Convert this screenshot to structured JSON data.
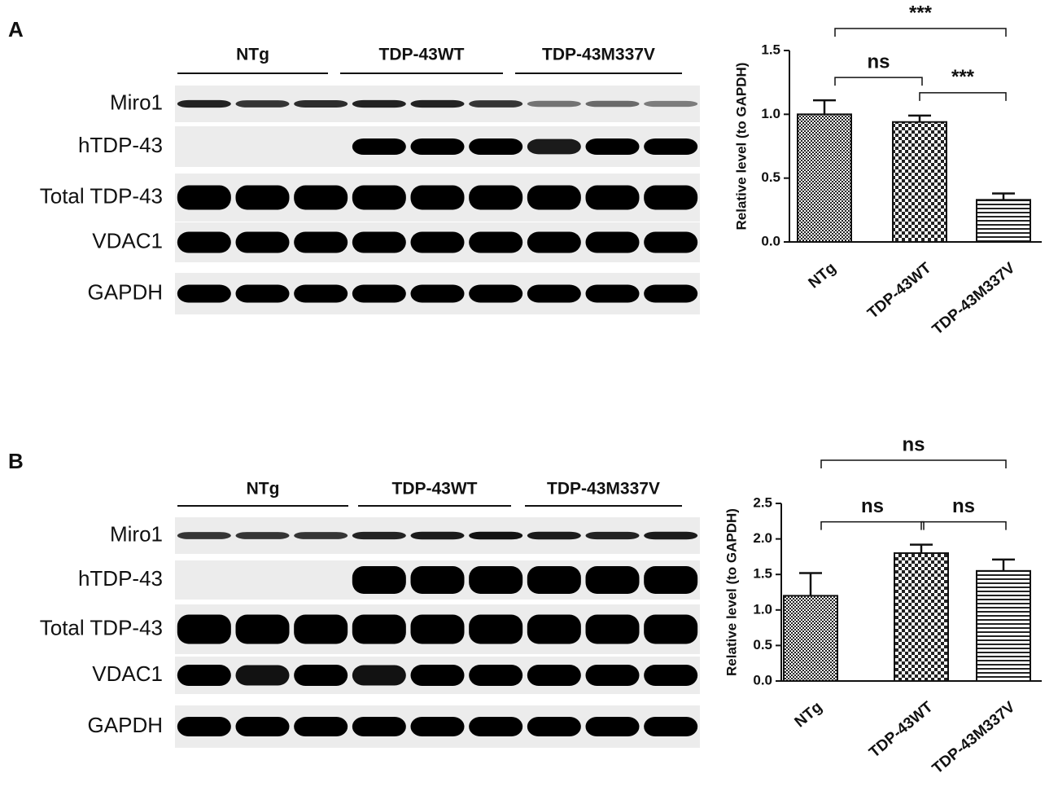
{
  "panels": [
    {
      "label": "A",
      "groups": [
        "NTg",
        "TDP-43WT",
        "TDP-43M337V"
      ],
      "rows": [
        "Miro1",
        "hTDP-43",
        "Total TDP-43",
        "VDAC1",
        "GAPDH"
      ]
    },
    {
      "label": "B",
      "groups": [
        "NTg",
        "TDP-43WT",
        "TDP-43M337V"
      ],
      "rows": [
        "Miro1",
        "hTDP-43",
        "Total TDP-43",
        "VDAC1",
        "GAPDH"
      ]
    }
  ],
  "chart_data": [
    {
      "type": "bar",
      "categories": [
        "NTg",
        "TDP-43WT",
        "TDP-43M337V"
      ],
      "values": [
        1.0,
        0.94,
        0.33
      ],
      "errors": [
        0.11,
        0.05,
        0.05
      ],
      "ylabel": "Relative  level (to GAPDH)",
      "ylim": [
        0,
        1.5
      ],
      "yticks": [
        {
          "value": 0,
          "label": "0.0"
        },
        0.5,
        {
          "value": 1,
          "label": "1.0"
        },
        1.5
      ],
      "annotations": [
        {
          "text": "***",
          "between": [
            0,
            2
          ]
        },
        {
          "text": "ns",
          "between": [
            0,
            1
          ]
        },
        {
          "text": "***",
          "between": [
            1,
            2
          ]
        }
      ]
    },
    {
      "type": "bar",
      "categories": [
        "NTg",
        "TDP-43WT",
        "TDP-43M337V"
      ],
      "values": [
        1.2,
        1.8,
        1.55
      ],
      "errors": [
        0.32,
        0.12,
        0.16
      ],
      "ylabel": "Relative  level (to GAPDH)",
      "ylim": [
        0,
        2.5
      ],
      "yticks": [
        {
          "value": 0,
          "label": "0.0"
        },
        0.5,
        {
          "value": 1,
          "label": "1.0"
        },
        1.5,
        {
          "value": 2,
          "label": "2.0"
        },
        2.5
      ],
      "annotations": [
        {
          "text": "ns",
          "between": [
            0,
            2
          ]
        },
        {
          "text": "ns",
          "between": [
            0,
            1
          ]
        },
        {
          "text": "ns",
          "between": [
            1,
            2
          ]
        }
      ]
    }
  ]
}
